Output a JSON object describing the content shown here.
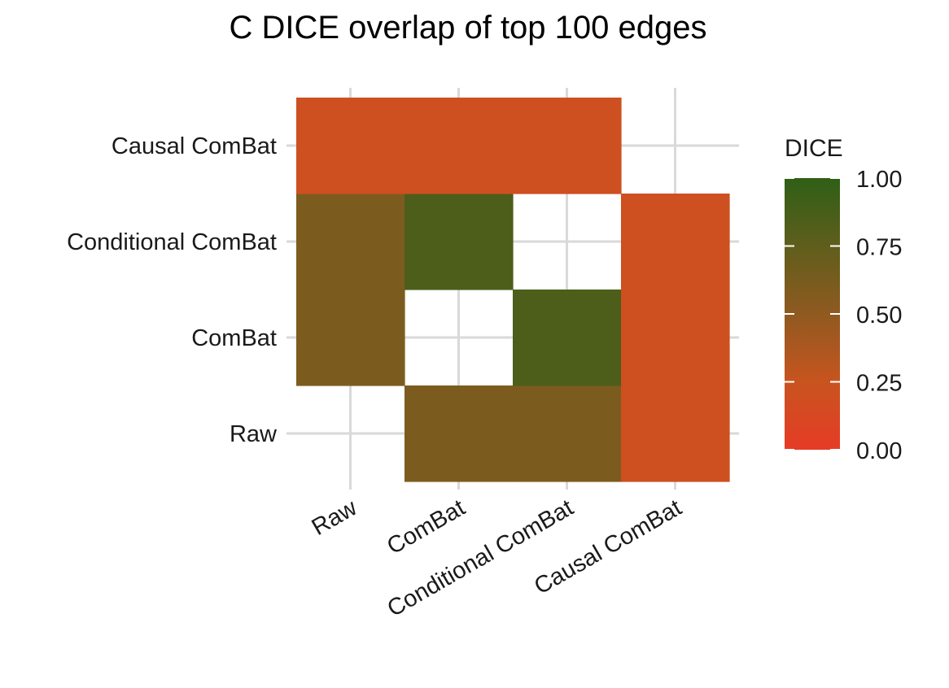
{
  "chart_data": {
    "type": "heatmap",
    "title": "C  DICE overlap of top 100 edges",
    "x_categories": [
      "Raw",
      "ComBat",
      "Conditional ComBat",
      "Causal ComBat"
    ],
    "y_categories": [
      "Raw",
      "ComBat",
      "Conditional ComBat",
      "Causal ComBat"
    ],
    "cells": [
      {
        "x": "ComBat",
        "y": "Raw",
        "value": 0.6
      },
      {
        "x": "Conditional ComBat",
        "y": "Raw",
        "value": 0.6
      },
      {
        "x": "Causal ComBat",
        "y": "Raw",
        "value": 0.2
      },
      {
        "x": "Raw",
        "y": "ComBat",
        "value": 0.6
      },
      {
        "x": "Conditional ComBat",
        "y": "ComBat",
        "value": 0.85
      },
      {
        "x": "Causal ComBat",
        "y": "ComBat",
        "value": 0.2
      },
      {
        "x": "Raw",
        "y": "Conditional ComBat",
        "value": 0.6
      },
      {
        "x": "ComBat",
        "y": "Conditional ComBat",
        "value": 0.85
      },
      {
        "x": "Causal ComBat",
        "y": "Conditional ComBat",
        "value": 0.2
      },
      {
        "x": "Raw",
        "y": "Causal ComBat",
        "value": 0.2
      },
      {
        "x": "ComBat",
        "y": "Causal ComBat",
        "value": 0.2
      },
      {
        "x": "Conditional ComBat",
        "y": "Causal ComBat",
        "value": 0.2
      }
    ],
    "legend": {
      "title": "DICE",
      "ticks": [
        "0.00",
        "0.25",
        "0.50",
        "0.75",
        "1.00"
      ],
      "range": [
        0,
        1
      ]
    },
    "colors": {
      "low": "#e63b26",
      "mid": "#8f5a20",
      "high": "#2f5f16",
      "grid": "#d9d9d9"
    },
    "grid": true
  }
}
